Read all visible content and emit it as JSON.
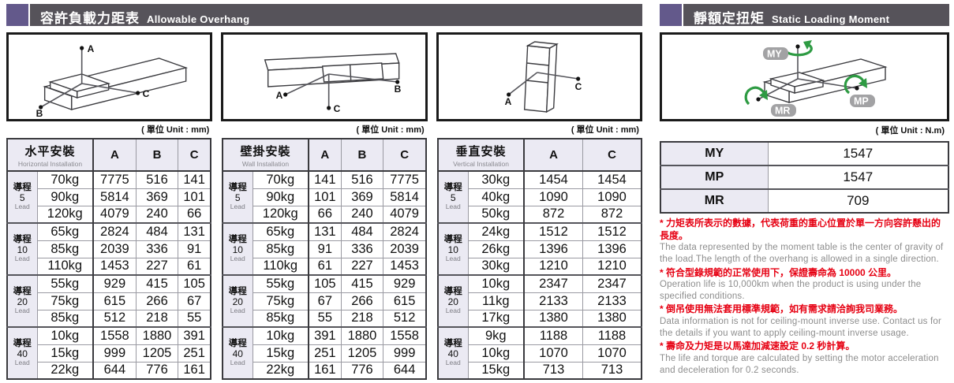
{
  "left_section": {
    "title_zh": "容許負載力距表",
    "title_en": "Allowable Overhang",
    "unit_label": "( 單位 Unit : mm)",
    "diagrams": [
      {
        "name": "horizontal-installation-diagram",
        "labels": {
          "a": "A",
          "b": "B",
          "c": "C"
        }
      },
      {
        "name": "wall-installation-diagram",
        "labels": {
          "a": "A",
          "b": "B",
          "c": "C"
        }
      },
      {
        "name": "vertical-installation-diagram",
        "labels": {
          "a": "A",
          "c": "C"
        }
      }
    ],
    "tables": [
      {
        "name_zh": "水平安裝",
        "name_en": "Horizontal Installation",
        "columns": [
          "A",
          "B",
          "C"
        ],
        "groups": [
          {
            "lead_zh": "導程",
            "lead_num": "5",
            "lead_en": "Lead",
            "rows": [
              {
                "load": "70kg",
                "values": [
                  "7775",
                  "516",
                  "141"
                ]
              },
              {
                "load": "90kg",
                "values": [
                  "5814",
                  "369",
                  "101"
                ]
              },
              {
                "load": "120kg",
                "values": [
                  "4079",
                  "240",
                  "66"
                ]
              }
            ]
          },
          {
            "lead_zh": "導程",
            "lead_num": "10",
            "lead_en": "Lead",
            "rows": [
              {
                "load": "65kg",
                "values": [
                  "2824",
                  "484",
                  "131"
                ]
              },
              {
                "load": "85kg",
                "values": [
                  "2039",
                  "336",
                  "91"
                ]
              },
              {
                "load": "110kg",
                "values": [
                  "1453",
                  "227",
                  "61"
                ]
              }
            ]
          },
          {
            "lead_zh": "導程",
            "lead_num": "20",
            "lead_en": "Lead",
            "rows": [
              {
                "load": "55kg",
                "values": [
                  "929",
                  "415",
                  "105"
                ]
              },
              {
                "load": "75kg",
                "values": [
                  "615",
                  "266",
                  "67"
                ]
              },
              {
                "load": "85kg",
                "values": [
                  "512",
                  "218",
                  "55"
                ]
              }
            ]
          },
          {
            "lead_zh": "導程",
            "lead_num": "40",
            "lead_en": "Lead",
            "rows": [
              {
                "load": "10kg",
                "values": [
                  "1558",
                  "1880",
                  "391"
                ]
              },
              {
                "load": "15kg",
                "values": [
                  "999",
                  "1205",
                  "251"
                ]
              },
              {
                "load": "22kg",
                "values": [
                  "644",
                  "776",
                  "161"
                ]
              }
            ]
          }
        ]
      },
      {
        "name_zh": "壁掛安裝",
        "name_en": "Wall Installation",
        "columns": [
          "A",
          "B",
          "C"
        ],
        "groups": [
          {
            "lead_zh": "導程",
            "lead_num": "5",
            "lead_en": "Lead",
            "rows": [
              {
                "load": "70kg",
                "values": [
                  "141",
                  "516",
                  "7775"
                ]
              },
              {
                "load": "90kg",
                "values": [
                  "101",
                  "369",
                  "5814"
                ]
              },
              {
                "load": "120kg",
                "values": [
                  "66",
                  "240",
                  "4079"
                ]
              }
            ]
          },
          {
            "lead_zh": "導程",
            "lead_num": "10",
            "lead_en": "Lead",
            "rows": [
              {
                "load": "65kg",
                "values": [
                  "131",
                  "484",
                  "2824"
                ]
              },
              {
                "load": "85kg",
                "values": [
                  "91",
                  "336",
                  "2039"
                ]
              },
              {
                "load": "110kg",
                "values": [
                  "61",
                  "227",
                  "1453"
                ]
              }
            ]
          },
          {
            "lead_zh": "導程",
            "lead_num": "20",
            "lead_en": "Lead",
            "rows": [
              {
                "load": "55kg",
                "values": [
                  "105",
                  "415",
                  "929"
                ]
              },
              {
                "load": "75kg",
                "values": [
                  "67",
                  "266",
                  "615"
                ]
              },
              {
                "load": "85kg",
                "values": [
                  "55",
                  "218",
                  "512"
                ]
              }
            ]
          },
          {
            "lead_zh": "導程",
            "lead_num": "40",
            "lead_en": "Lead",
            "rows": [
              {
                "load": "10kg",
                "values": [
                  "391",
                  "1880",
                  "1558"
                ]
              },
              {
                "load": "15kg",
                "values": [
                  "251",
                  "1205",
                  "999"
                ]
              },
              {
                "load": "22kg",
                "values": [
                  "161",
                  "776",
                  "644"
                ]
              }
            ]
          }
        ]
      },
      {
        "name_zh": "垂直安裝",
        "name_en": "Vertical Installation",
        "columns": [
          "A",
          "C"
        ],
        "groups": [
          {
            "lead_zh": "導程",
            "lead_num": "5",
            "lead_en": "Lead",
            "rows": [
              {
                "load": "30kg",
                "values": [
                  "1454",
                  "1454"
                ]
              },
              {
                "load": "40kg",
                "values": [
                  "1090",
                  "1090"
                ]
              },
              {
                "load": "50kg",
                "values": [
                  "872",
                  "872"
                ]
              }
            ]
          },
          {
            "lead_zh": "導程",
            "lead_num": "10",
            "lead_en": "Lead",
            "rows": [
              {
                "load": "24kg",
                "values": [
                  "1512",
                  "1512"
                ]
              },
              {
                "load": "26kg",
                "values": [
                  "1396",
                  "1396"
                ]
              },
              {
                "load": "30kg",
                "values": [
                  "1210",
                  "1210"
                ]
              }
            ]
          },
          {
            "lead_zh": "導程",
            "lead_num": "20",
            "lead_en": "Lead",
            "rows": [
              {
                "load": "10kg",
                "values": [
                  "2347",
                  "2347"
                ]
              },
              {
                "load": "11kg",
                "values": [
                  "2133",
                  "2133"
                ]
              },
              {
                "load": "17kg",
                "values": [
                  "1380",
                  "1380"
                ]
              }
            ]
          },
          {
            "lead_zh": "導程",
            "lead_num": "40",
            "lead_en": "Lead",
            "rows": [
              {
                "load": "9kg",
                "values": [
                  "1188",
                  "1188"
                ]
              },
              {
                "load": "10kg",
                "values": [
                  "1070",
                  "1070"
                ]
              },
              {
                "load": "15kg",
                "values": [
                  "713",
                  "713"
                ]
              }
            ]
          }
        ]
      }
    ]
  },
  "right_section": {
    "title_zh": "靜額定扭矩",
    "title_en": "Static Loading Moment",
    "unit_label": "( 單位 Unit : N.m)",
    "diagram_labels": {
      "my": "MY",
      "mp": "MP",
      "mr": "MR"
    },
    "moments": [
      {
        "label": "MY",
        "value": "1547"
      },
      {
        "label": "MP",
        "value": "1547"
      },
      {
        "label": "MR",
        "value": "709"
      }
    ],
    "notes": [
      {
        "zh": "* 力矩表所表示的數據，代表荷重的重心位置於單一方向容許懸出的長度。",
        "en": "The data represented by the moment table is the center of gravity of the load.The length of the overhang is allowed in a single direction."
      },
      {
        "zh": "* 符合型錄規範的正常使用下，保證壽命為 10000 公里。",
        "en": "Operation life is 10,000km when the product is using under the specified conditions."
      },
      {
        "zh": "* 倒吊使用無法套用標準規範，如有需求請洽詢我司業務。",
        "en": "Data information is not for ceiling-mount inverse use. Contact us for the details if you want to apply ceiling-mount inverse usage."
      },
      {
        "zh": "* 壽命及力矩是以馬達加減速設定 0.2 秒計算。",
        "en": "The life and torque are calculated by setting the motor acceleration and deceleration for 0.2 seconds."
      }
    ]
  },
  "colors": {
    "accent_purple": "#63598b",
    "bar_dark": "#56535a",
    "table_header_bg": "#ebeaf3",
    "note_red": "#e60012",
    "note_gray": "#8d8d8d",
    "arrow_green": "#2e9b43"
  }
}
